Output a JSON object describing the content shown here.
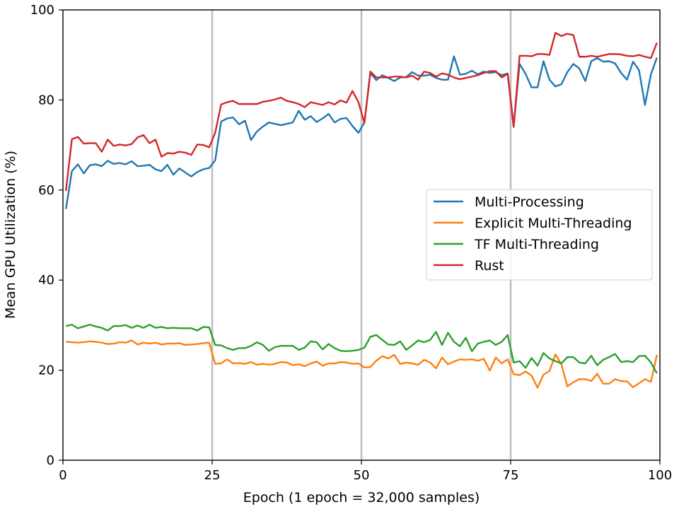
{
  "chart_data": {
    "type": "line",
    "title": "",
    "xlabel": "Epoch (1 epoch = 32,000 samples)",
    "ylabel": "Mean GPU Utilization (%)",
    "xlim": [
      0,
      100
    ],
    "ylim": [
      0,
      100
    ],
    "xticks": [
      "0",
      "25",
      "50",
      "75",
      "100"
    ],
    "yticks": [
      "0",
      "20",
      "40",
      "60",
      "80",
      "100"
    ],
    "grid": false,
    "vertical_markers": [
      25,
      50,
      75
    ],
    "legend_position": "center-right",
    "series": [
      {
        "name": "Multi-Processing",
        "color": "#1f77b4",
        "values": [
          55.8,
          64.2,
          65.7,
          63.7,
          65.5,
          65.7,
          65.3,
          66.5,
          65.8,
          66.0,
          65.7,
          66.4,
          65.3,
          65.4,
          65.6,
          64.6,
          64.2,
          65.6,
          63.4,
          64.8,
          63.9,
          63.0,
          64.0,
          64.6,
          64.9,
          66.6,
          75.2,
          75.9,
          76.1,
          74.6,
          75.4,
          71.1,
          73.0,
          74.1,
          75.0,
          74.7,
          74.4,
          74.7,
          75.0,
          77.6,
          75.6,
          76.4,
          75.1,
          75.9,
          76.9,
          75.0,
          75.8,
          76.0,
          74.2,
          72.7,
          75.0,
          86.0,
          84.4,
          85.5,
          84.9,
          84.2,
          85.0,
          85.1,
          86.2,
          85.4,
          85.4,
          85.6,
          84.9,
          84.5,
          84.5,
          89.7,
          85.6,
          85.8,
          86.5,
          85.7,
          86.3,
          86.0,
          86.2,
          85.5,
          85.9,
          74.2,
          88.0,
          85.8,
          82.8,
          82.8,
          88.6,
          84.5,
          83.0,
          83.5,
          86.2,
          88.0,
          87.0,
          84.2,
          88.6,
          89.3,
          88.5,
          88.6,
          88.1,
          86.0,
          84.5,
          88.5,
          86.6,
          78.9,
          85.7,
          89.4
        ],
        "x_start": 0.5,
        "x_step": 1
      },
      {
        "name": "Explicit Multi-Threading",
        "color": "#ff7f0e",
        "values": [
          26.3,
          26.2,
          26.1,
          26.2,
          26.4,
          26.3,
          26.1,
          25.8,
          25.9,
          26.2,
          26.1,
          26.6,
          25.7,
          26.1,
          25.9,
          26.1,
          25.7,
          25.9,
          25.9,
          26.0,
          25.6,
          25.7,
          25.8,
          26.0,
          26.1,
          21.4,
          21.5,
          22.4,
          21.5,
          21.6,
          21.4,
          21.8,
          21.2,
          21.4,
          21.2,
          21.4,
          21.8,
          21.7,
          21.1,
          21.3,
          20.9,
          21.5,
          21.9,
          21.0,
          21.5,
          21.5,
          21.8,
          21.7,
          21.4,
          21.5,
          20.6,
          20.7,
          22.1,
          23.1,
          22.6,
          23.4,
          21.4,
          21.7,
          21.5,
          21.2,
          22.3,
          21.7,
          20.4,
          22.8,
          21.3,
          21.9,
          22.4,
          22.3,
          22.4,
          22.1,
          22.5,
          19.9,
          22.8,
          21.5,
          22.4,
          19.1,
          18.9,
          19.7,
          18.8,
          16.1,
          19.0,
          19.8,
          23.5,
          21.3,
          16.4,
          17.3,
          18.0,
          18.0,
          17.6,
          19.2,
          17.0,
          17.0,
          18.0,
          17.6,
          17.5,
          16.2,
          17.1,
          18.0,
          17.4,
          23.4
        ],
        "x_start": 0.5,
        "x_step": 1
      },
      {
        "name": "TF Multi-Threading",
        "color": "#2ca02c",
        "values": [
          29.8,
          30.1,
          29.3,
          29.7,
          30.1,
          29.7,
          29.4,
          28.8,
          29.8,
          29.8,
          30.0,
          29.4,
          29.9,
          29.4,
          30.1,
          29.4,
          29.6,
          29.3,
          29.4,
          29.3,
          29.3,
          29.3,
          28.8,
          29.6,
          29.5,
          25.6,
          25.5,
          24.9,
          24.5,
          24.9,
          24.9,
          25.4,
          26.2,
          25.6,
          24.3,
          25.1,
          25.4,
          25.4,
          25.4,
          24.5,
          25.0,
          26.4,
          26.2,
          24.6,
          25.8,
          24.9,
          24.3,
          24.2,
          24.3,
          24.5,
          25.0,
          27.4,
          27.8,
          26.7,
          25.7,
          25.6,
          26.4,
          24.5,
          25.5,
          26.6,
          26.2,
          26.7,
          28.5,
          25.6,
          28.3,
          26.3,
          25.3,
          27.2,
          24.2,
          25.9,
          26.3,
          26.6,
          25.6,
          26.3,
          27.8,
          21.7,
          22.0,
          20.5,
          22.7,
          21.0,
          23.8,
          22.6,
          22.0,
          21.5,
          22.9,
          22.9,
          21.7,
          21.5,
          23.2,
          21.1,
          22.3,
          22.9,
          23.6,
          21.8,
          22.0,
          21.8,
          23.1,
          23.2,
          21.7,
          19.3
        ],
        "x_start": 0.5,
        "x_step": 1
      },
      {
        "name": "Rust",
        "color": "#d62728",
        "values": [
          59.8,
          71.3,
          71.8,
          70.3,
          70.4,
          70.4,
          68.5,
          71.2,
          69.8,
          70.1,
          69.9,
          70.2,
          71.7,
          72.2,
          70.4,
          71.2,
          67.4,
          68.2,
          68.1,
          68.5,
          68.3,
          67.8,
          70.1,
          70.0,
          69.5,
          72.7,
          79.0,
          79.5,
          79.8,
          79.1,
          79.1,
          79.1,
          79.1,
          79.6,
          79.8,
          80.1,
          80.5,
          79.8,
          79.5,
          79.1,
          78.4,
          79.5,
          79.2,
          78.9,
          79.5,
          79.0,
          79.9,
          79.4,
          82.0,
          79.5,
          74.9,
          86.3,
          85.0,
          85.0,
          85.0,
          85.2,
          85.2,
          85.0,
          85.4,
          84.5,
          86.3,
          86.0,
          85.2,
          85.9,
          85.6,
          85.0,
          84.6,
          84.9,
          85.2,
          85.5,
          86.0,
          86.4,
          86.4,
          85.0,
          85.8,
          74.0,
          89.8,
          89.8,
          89.7,
          90.2,
          90.2,
          90.0,
          94.9,
          94.2,
          94.7,
          94.4,
          89.6,
          89.6,
          89.8,
          89.6,
          89.9,
          90.2,
          90.2,
          90.1,
          89.8,
          89.7,
          90.0,
          89.6,
          89.3,
          92.7
        ],
        "x_start": 0.5,
        "x_step": 1
      }
    ]
  }
}
